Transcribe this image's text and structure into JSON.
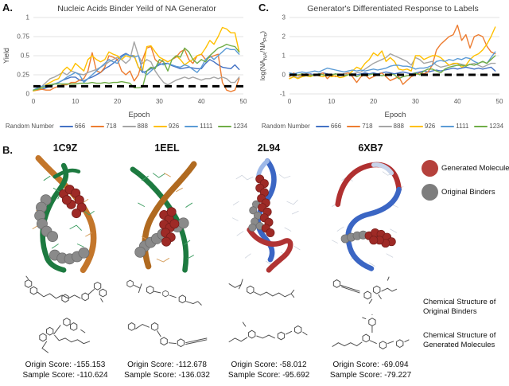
{
  "panels": {
    "a": "A.",
    "b": "B.",
    "c": "C."
  },
  "chart_data": [
    {
      "type": "line",
      "title": "Nucleic Acids Binder Yeild of NA Generator",
      "xlabel": "Epoch",
      "ylabel": "Yield",
      "legend_title": "Random Number",
      "legend_position": "bottom",
      "grid": true,
      "xlim": [
        0,
        50
      ],
      "ylim": [
        0,
        1
      ],
      "xticks": [
        0,
        10,
        20,
        30,
        40,
        50
      ],
      "yticks": [
        0,
        0.25,
        0.5,
        0.75,
        1
      ],
      "ytick_labels": [
        "0",
        "0.25",
        "0.5",
        "0.75",
        "1"
      ],
      "reference_line": {
        "y": 0.1,
        "style": "dashed",
        "color": "#000000"
      },
      "x_start": 0,
      "x_step": 1,
      "series": [
        {
          "name": "666",
          "color": "#4472C4",
          "values": [
            0.05,
            0.07,
            0.06,
            0.08,
            0.1,
            0.13,
            0.15,
            0.18,
            0.2,
            0.22,
            0.22,
            0.18,
            0.17,
            0.2,
            0.22,
            0.25,
            0.28,
            0.33,
            0.36,
            0.4,
            0.45,
            0.5,
            0.53,
            0.5,
            0.5,
            0.35,
            0.28,
            0.3,
            0.33,
            0.35,
            0.38,
            0.4,
            0.4,
            0.37,
            0.35,
            0.33,
            0.34,
            0.35,
            0.34,
            0.33,
            0.33,
            0.4,
            0.45,
            0.42,
            0.38,
            0.35,
            0.34,
            0.33,
            0.38,
            0.32
          ]
        },
        {
          "name": "718",
          "color": "#ED7D31",
          "values": [
            0.04,
            0.05,
            0.06,
            0.05,
            0.05,
            0.08,
            0.1,
            0.12,
            0.12,
            0.15,
            0.15,
            0.18,
            0.2,
            0.3,
            0.54,
            0.3,
            0.28,
            0.35,
            0.5,
            0.48,
            0.45,
            0.3,
            0.25,
            0.3,
            0.17,
            0.25,
            0.45,
            0.6,
            0.62,
            0.45,
            0.4,
            0.45,
            0.42,
            0.45,
            0.48,
            0.55,
            0.58,
            0.45,
            0.4,
            0.5,
            0.52,
            0.45,
            0.48,
            0.5,
            0.52,
            0.15,
            0.05,
            0.03,
            0.05,
            0.2
          ]
        },
        {
          "name": "888",
          "color": "#A5A5A5",
          "values": [
            0.05,
            0.08,
            0.1,
            0.15,
            0.2,
            0.22,
            0.25,
            0.28,
            0.25,
            0.3,
            0.28,
            0.26,
            0.25,
            0.28,
            0.3,
            0.32,
            0.35,
            0.38,
            0.42,
            0.45,
            0.48,
            0.45,
            0.4,
            0.45,
            0.68,
            0.5,
            0.4,
            0.45,
            0.42,
            0.3,
            0.22,
            0.15,
            0.12,
            0.15,
            0.18,
            0.2,
            0.22,
            0.2,
            0.22,
            0.2,
            0.18,
            0.2,
            0.2,
            0.22,
            0.2,
            0.22,
            0.2,
            0.15,
            0.15,
            0.22
          ]
        },
        {
          "name": "926",
          "color": "#FFC000",
          "values": [
            0.04,
            0.06,
            0.08,
            0.12,
            0.15,
            0.18,
            0.2,
            0.3,
            0.35,
            0.3,
            0.4,
            0.35,
            0.3,
            0.45,
            0.5,
            0.45,
            0.42,
            0.45,
            0.55,
            0.52,
            0.5,
            0.45,
            0.5,
            0.48,
            0.5,
            0.35,
            0.3,
            0.62,
            0.63,
            0.55,
            0.48,
            0.45,
            0.42,
            0.45,
            0.5,
            0.45,
            0.38,
            0.42,
            0.45,
            0.5,
            0.52,
            0.6,
            0.7,
            0.65,
            0.75,
            0.87,
            0.85,
            0.8,
            0.8,
            0.55
          ]
        },
        {
          "name": "1111",
          "color": "#5B9BD5",
          "values": [
            0.05,
            0.08,
            0.1,
            0.11,
            0.12,
            0.13,
            0.15,
            0.18,
            0.22,
            0.25,
            0.28,
            0.25,
            0.15,
            0.2,
            0.25,
            0.3,
            0.35,
            0.4,
            0.45,
            0.42,
            0.4,
            0.48,
            0.52,
            0.5,
            0.48,
            0.5,
            0.3,
            0.25,
            0.3,
            0.35,
            0.4,
            0.38,
            0.4,
            0.38,
            0.36,
            0.35,
            0.38,
            0.36,
            0.32,
            0.28,
            0.35,
            0.45,
            0.5,
            0.45,
            0.5,
            0.55,
            0.6,
            0.58,
            0.58,
            0.52
          ]
        },
        {
          "name": "1234",
          "color": "#70AD47",
          "values": [
            0.05,
            0.06,
            0.08,
            0.1,
            0.12,
            0.13,
            0.13,
            0.13,
            0.13,
            0.13,
            0.13,
            0.14,
            0.14,
            0.14,
            0.15,
            0.14,
            0.14,
            0.15,
            0.14,
            0.15,
            0.15,
            0.16,
            0.15,
            0.14,
            0.08,
            0.08,
            0.09,
            0.3,
            0.35,
            0.33,
            0.45,
            0.42,
            0.3,
            0.45,
            0.5,
            0.48,
            0.6,
            0.55,
            0.45,
            0.4,
            0.45,
            0.42,
            0.5,
            0.55,
            0.6,
            0.62,
            0.65,
            0.63,
            0.62,
            0.55
          ]
        }
      ]
    },
    {
      "type": "line",
      "title": "Generator's Differentiated Response to Labels",
      "xlabel": "Epoch",
      "ylabel": "log(NA_NA/NA_Pro)",
      "ylabel_parts": {
        "p1": "log(NA",
        "sub1": "NA",
        "p2": "/NA",
        "sub2": "Pro",
        "p3": ")"
      },
      "legend_title": "Random Number",
      "legend_position": "bottom",
      "grid": true,
      "xlim": [
        0,
        50
      ],
      "ylim": [
        -1,
        3
      ],
      "xticks": [
        0,
        10,
        20,
        30,
        40,
        50
      ],
      "yticks": [
        -1,
        0,
        1,
        2,
        3
      ],
      "ytick_labels": [
        "-1",
        "0",
        "1",
        "2",
        "3"
      ],
      "reference_line": {
        "y": 0,
        "style": "dashed",
        "color": "#000000"
      },
      "x_start": 0,
      "x_step": 1,
      "series": [
        {
          "name": "666",
          "color": "#4472C4",
          "values": [
            0.0,
            0.05,
            0.0,
            -0.05,
            0.0,
            0.05,
            0.0,
            0.05,
            0.1,
            0.05,
            0.0,
            0.05,
            0.0,
            0.05,
            0.1,
            0.05,
            0.0,
            0.05,
            0.1,
            0.05,
            0.1,
            0.05,
            0.1,
            0.15,
            0.1,
            0.05,
            0.1,
            0.15,
            0.1,
            0.05,
            0.1,
            0.15,
            0.2,
            0.15,
            0.2,
            0.25,
            0.2,
            0.25,
            0.3,
            0.35,
            0.3,
            0.35,
            0.4,
            0.35,
            0.3,
            0.35,
            0.3,
            0.35,
            0.4,
            0.2
          ]
        },
        {
          "name": "718",
          "color": "#ED7D31",
          "values": [
            -0.1,
            0.1,
            -0.05,
            0.0,
            0.05,
            0.0,
            -0.05,
            0.0,
            0.1,
            -0.2,
            0.0,
            -0.1,
            0.0,
            0.05,
            0.1,
            -0.1,
            -0.4,
            -0.1,
            0.0,
            -0.2,
            -0.1,
            0.0,
            0.1,
            -0.1,
            -0.3,
            -0.2,
            -0.1,
            -0.5,
            -0.3,
            -0.1,
            0.0,
            0.1,
            0.05,
            0.15,
            0.5,
            1.3,
            1.6,
            1.8,
            2.0,
            2.1,
            2.6,
            1.8,
            2.1,
            1.4,
            2.0,
            2.1,
            2.0,
            1.5,
            1.2,
            1.1
          ]
        },
        {
          "name": "888",
          "color": "#A5A5A5",
          "values": [
            -0.2,
            -0.1,
            -0.15,
            -0.05,
            0.0,
            -0.05,
            0.0,
            0.05,
            0.0,
            -0.05,
            0.0,
            0.05,
            0.0,
            0.05,
            0.0,
            0.05,
            0.1,
            0.15,
            0.3,
            0.45,
            0.6,
            0.7,
            0.8,
            0.9,
            1.1,
            1.0,
            0.9,
            0.8,
            0.7,
            0.5,
            0.9,
            0.8,
            0.6,
            0.65,
            0.7,
            0.5,
            0.4,
            0.45,
            0.5,
            0.55,
            0.6,
            0.55,
            0.5,
            0.55,
            0.6,
            0.5,
            0.4,
            0.5,
            0.6,
            0.6
          ]
        },
        {
          "name": "926",
          "color": "#FFC000",
          "values": [
            -0.2,
            -0.1,
            -0.2,
            -0.1,
            -0.05,
            -0.1,
            0.0,
            -0.05,
            -0.1,
            0.0,
            -0.1,
            -0.05,
            -0.15,
            -0.1,
            0.0,
            0.2,
            0.4,
            0.3,
            0.6,
            0.8,
            1.15,
            1.0,
            1.25,
            0.7,
            0.9,
            0.7,
            0.3,
            0.25,
            0.3,
            0.2,
            1.0,
            1.0,
            0.8,
            0.9,
            1.0,
            1.0,
            0.9,
            0.7,
            0.5,
            0.6,
            0.6,
            0.4,
            0.5,
            0.8,
            1.0,
            1.1,
            1.3,
            1.6,
            2.0,
            2.5
          ]
        },
        {
          "name": "1111",
          "color": "#5B9BD5",
          "values": [
            0.1,
            0.05,
            0.1,
            0.15,
            0.1,
            0.15,
            0.2,
            0.15,
            0.25,
            0.35,
            0.3,
            0.25,
            0.2,
            0.15,
            0.2,
            0.25,
            0.2,
            0.25,
            0.2,
            0.25,
            0.3,
            0.25,
            0.3,
            0.35,
            0.45,
            0.5,
            0.5,
            0.45,
            0.45,
            0.4,
            0.3,
            0.35,
            0.35,
            0.4,
            0.5,
            0.7,
            0.75,
            0.7,
            0.8,
            0.75,
            0.85,
            0.8,
            0.9,
            0.85,
            0.7,
            0.6,
            0.7,
            0.6,
            0.9,
            1.2
          ]
        },
        {
          "name": "1234",
          "color": "#70AD47",
          "values": [
            0.0,
            -0.05,
            0.0,
            0.05,
            0.0,
            -0.05,
            0.0,
            0.05,
            0.0,
            -0.05,
            0.0,
            0.05,
            0.0,
            -0.05,
            0.0,
            0.05,
            -0.1,
            0.0,
            -0.05,
            0.0,
            0.05,
            0.0,
            -0.05,
            0.0,
            0.05,
            0.0,
            -0.2,
            -0.1,
            -0.05,
            0.0,
            0.1,
            0.0,
            0.2,
            0.3,
            0.3,
            0.2,
            0.1,
            0.3,
            0.4,
            0.45,
            0.5,
            0.5,
            0.45,
            0.55,
            0.5,
            0.6,
            0.7,
            0.6,
            0.8,
            1.0
          ]
        }
      ]
    }
  ],
  "panel_b": {
    "legend": {
      "generated_label": "Generated Molecules",
      "original_label": "Original Binders",
      "generated_color": "#b5413c",
      "original_color": "#7d7d7d"
    },
    "side_labels": {
      "original": "Chemical Structure of Original Binders",
      "generated": "Chemical Structure of Generated Molecules"
    },
    "structures": [
      {
        "pdb_id": "1C9Z",
        "origin_score": "Origin Score: -155.153",
        "sample_score": "Sample Score: -110.624"
      },
      {
        "pdb_id": "1EEL",
        "origin_score": "Origin Score: -112.678",
        "sample_score": "Sample Score: -136.032"
      },
      {
        "pdb_id": "2L94",
        "origin_score": "Origin Score: -58.012",
        "sample_score": "Sample Score: -95.692"
      },
      {
        "pdb_id": "6XB7",
        "origin_score": "Origin Score: -69.094",
        "sample_score": "Sample Score: -79.227"
      }
    ]
  }
}
